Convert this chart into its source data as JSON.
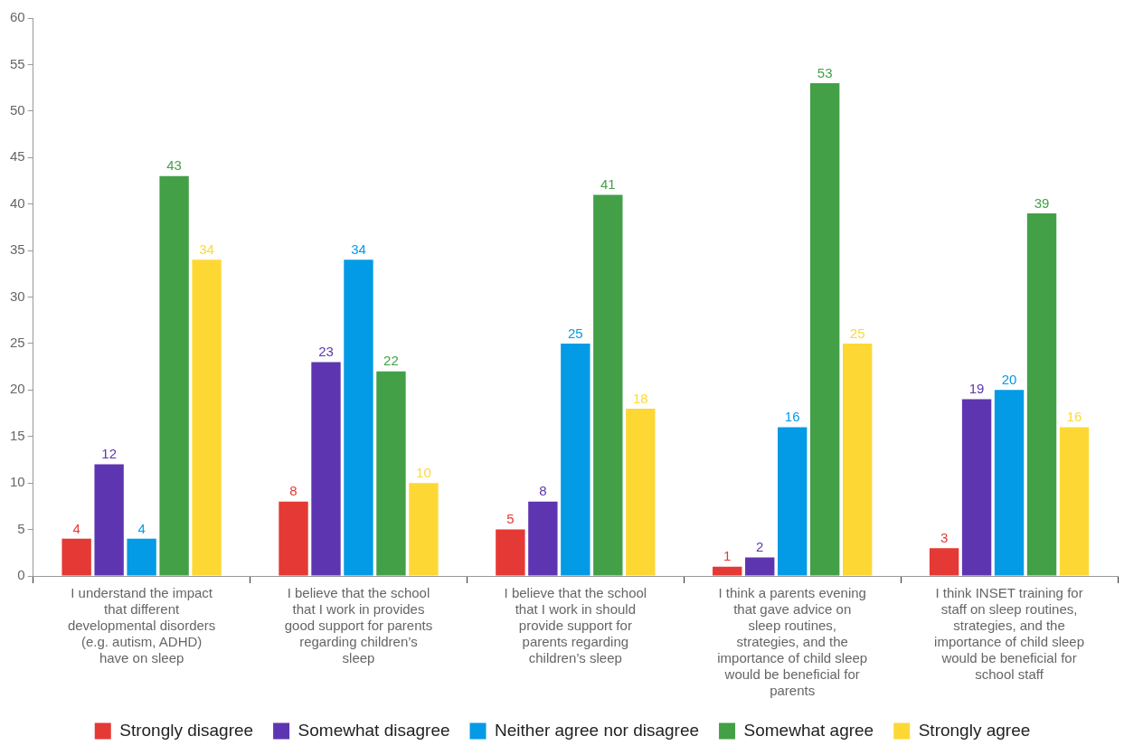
{
  "chart_data": {
    "type": "bar",
    "categories": [
      "I understand the impact that different developmental disorders (e.g. autism, ADHD) have on sleep",
      "I believe that the school that I work in provides good support for parents regarding children’s sleep",
      "I believe that the school that I work in should provide support for parents regarding children’s sleep",
      "I think a parents evening that gave advice on sleep routines, strategies, and the importance of child sleep would be beneficial for parents",
      "I think INSET training for staff on sleep routines, strategies, and the importance of child sleep would be beneficial for school staff"
    ],
    "series": [
      {
        "name": "Strongly disagree",
        "color": "#e53935",
        "values": [
          4,
          8,
          5,
          1,
          3
        ]
      },
      {
        "name": "Somewhat disagree",
        "color": "#5e35b1",
        "values": [
          12,
          23,
          8,
          2,
          19
        ]
      },
      {
        "name": "Neither agree nor disagree",
        "color": "#039be5",
        "values": [
          4,
          34,
          25,
          16,
          20
        ]
      },
      {
        "name": "Somewhat agree",
        "color": "#43a047",
        "values": [
          43,
          22,
          41,
          53,
          39
        ]
      },
      {
        "name": "Strongly agree",
        "color": "#fdd835",
        "values": [
          34,
          10,
          18,
          25,
          16
        ]
      }
    ],
    "ylim": [
      0,
      60
    ],
    "yticks": [
      0,
      5,
      10,
      15,
      20,
      25,
      30,
      35,
      40,
      45,
      50,
      55,
      60
    ],
    "grid": false,
    "legend": "bottom",
    "data_labels": true
  }
}
